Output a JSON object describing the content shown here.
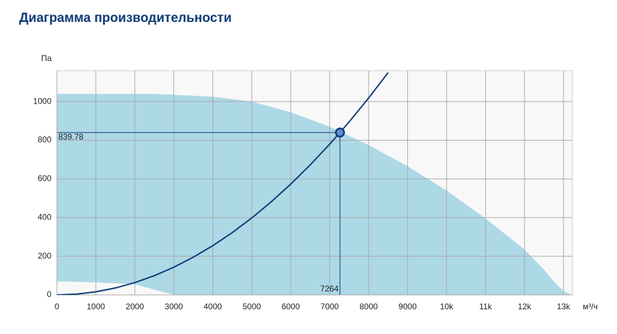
{
  "chart_data": {
    "type": "performance",
    "title": "Диаграмма производительности",
    "y_label": "Па",
    "x_label": "м³/ч",
    "xlim": [
      0,
      13230
    ],
    "ylim": [
      0,
      1160
    ],
    "xticks": [
      0,
      1000,
      2000,
      3000,
      4000,
      5000,
      6000,
      7000,
      8000,
      9000,
      {
        "value": 10000,
        "label": "10k"
      },
      {
        "value": 11000,
        "label": "11k"
      },
      {
        "value": 12000,
        "label": "12k"
      },
      {
        "value": 13000,
        "label": "13k"
      }
    ],
    "yticks": [
      0,
      200,
      400,
      600,
      800,
      1000
    ],
    "grid": true,
    "region": {
      "color": "#add8e6",
      "x": [
        0,
        1000,
        2500,
        4000,
        5000,
        6000,
        7000,
        8000,
        9000,
        10000,
        11000,
        12000,
        12500,
        12800,
        13000,
        13200,
        3000,
        2000,
        1000,
        0
      ],
      "values": [
        1040,
        1040,
        1040,
        1025,
        1000,
        945,
        870,
        775,
        665,
        540,
        395,
        235,
        130,
        60,
        20,
        0,
        0,
        55,
        65,
        70
      ]
    },
    "curve": {
      "color": "#0d3b75",
      "x": [
        0,
        500,
        1000,
        1500,
        2000,
        2500,
        3000,
        3500,
        4000,
        4500,
        5000,
        5500,
        6000,
        6500,
        7000,
        7264,
        7500,
        8000,
        8500
      ],
      "values": [
        0,
        4.0,
        15.9,
        35.8,
        63.7,
        99.5,
        143.2,
        195.0,
        254.6,
        322.3,
        397.9,
        481.4,
        573.0,
        672.4,
        779.9,
        839.78,
        895.2,
        1018.6,
        1149.9
      ]
    },
    "point": {
      "x": 7264,
      "y": 839.78,
      "color": "#0d3b75"
    }
  }
}
